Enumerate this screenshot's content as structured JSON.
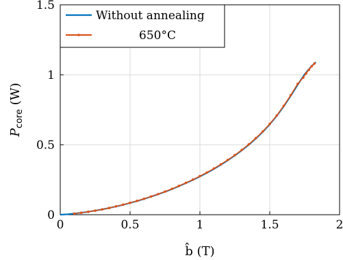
{
  "chart_data": {
    "type": "line",
    "title": "",
    "xlabel": "b̂ (T)",
    "ylabel": "Pcore (W)",
    "ylabel_main": "P",
    "ylabel_sub": "core",
    "ylabel_unit": " (W)",
    "xlim": [
      0,
      2
    ],
    "ylim": [
      0,
      1.5
    ],
    "xticks": [
      0,
      0.5,
      1,
      1.5,
      2
    ],
    "yticks": [
      0,
      0.5,
      1,
      1.5
    ],
    "xtick_labels": [
      "0",
      "0.5",
      "1",
      "1.5",
      "2"
    ],
    "ytick_labels": [
      "0",
      "0.5",
      "1",
      "1.5"
    ],
    "grid": true,
    "legend_position": "top-left",
    "series": [
      {
        "name": "Without annealing",
        "color": "#0072BD",
        "marker": "none",
        "x": [
          0,
          0.05,
          0.1,
          0.15,
          0.2,
          0.25,
          0.3,
          0.35,
          0.4,
          0.45,
          0.5,
          0.55,
          0.6,
          0.65,
          0.7,
          0.75,
          0.8,
          0.85,
          0.9,
          0.95,
          1.0,
          1.05,
          1.1,
          1.15,
          1.2,
          1.25,
          1.3,
          1.35,
          1.4,
          1.45,
          1.5,
          1.55,
          1.6,
          1.65,
          1.7,
          1.75,
          1.8,
          1.83
        ],
        "y": [
          0,
          0.003,
          0.008,
          0.014,
          0.021,
          0.029,
          0.038,
          0.048,
          0.059,
          0.071,
          0.084,
          0.098,
          0.113,
          0.129,
          0.146,
          0.164,
          0.183,
          0.204,
          0.226,
          0.249,
          0.273,
          0.299,
          0.327,
          0.357,
          0.389,
          0.423,
          0.46,
          0.5,
          0.544,
          0.592,
          0.646,
          0.706,
          0.774,
          0.849,
          0.928,
          1.004,
          1.062,
          1.09
        ]
      },
      {
        "name": "650°C",
        "color": "#D95319",
        "marker": "dot",
        "x": [
          0.1,
          0.15,
          0.2,
          0.25,
          0.3,
          0.35,
          0.4,
          0.45,
          0.5,
          0.55,
          0.6,
          0.65,
          0.7,
          0.75,
          0.8,
          0.85,
          0.9,
          0.95,
          1.0,
          1.05,
          1.1,
          1.15,
          1.2,
          1.25,
          1.3,
          1.35,
          1.4,
          1.45,
          1.5,
          1.55,
          1.6,
          1.65,
          1.7,
          1.74,
          1.76,
          1.78,
          1.8,
          1.82
        ],
        "y": [
          0.008,
          0.014,
          0.021,
          0.029,
          0.038,
          0.048,
          0.06,
          0.072,
          0.085,
          0.099,
          0.114,
          0.13,
          0.147,
          0.165,
          0.185,
          0.206,
          0.228,
          0.251,
          0.276,
          0.302,
          0.33,
          0.36,
          0.392,
          0.426,
          0.463,
          0.503,
          0.547,
          0.595,
          0.649,
          0.709,
          0.778,
          0.854,
          0.935,
          0.98,
          1.01,
          1.035,
          1.06,
          1.08
        ]
      }
    ]
  }
}
